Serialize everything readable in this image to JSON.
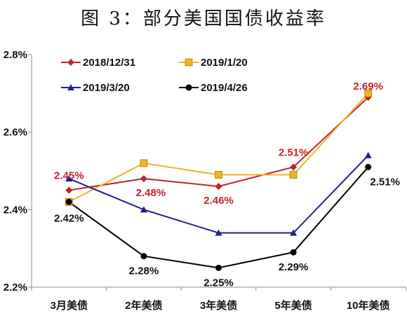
{
  "chart_data": {
    "type": "line",
    "title": "图 3：部分美国国债收益率",
    "categories": [
      "3月美债",
      "2年美债",
      "3年美债",
      "5年美债",
      "10年美债"
    ],
    "ylim": [
      2.2,
      2.8
    ],
    "yticks": [
      "2.2%",
      "2.4%",
      "2.6%",
      "2.8%"
    ],
    "grid": false,
    "legend_position": "top",
    "series": [
      {
        "name": "2018/12/31",
        "color": "#c0232d",
        "marker": "diamond",
        "values": [
          2.45,
          2.48,
          2.46,
          2.51,
          2.69
        ]
      },
      {
        "name": "2019/1/20",
        "color": "#f0b323",
        "marker": "square",
        "values": [
          2.42,
          2.52,
          2.49,
          2.49,
          2.7
        ]
      },
      {
        "name": "2019/3/20",
        "color": "#1f1f8f",
        "marker": "triangle",
        "values": [
          2.48,
          2.4,
          2.34,
          2.34,
          2.54
        ]
      },
      {
        "name": "2019/4/26",
        "color": "#000000",
        "marker": "circle",
        "values": [
          2.42,
          2.28,
          2.25,
          2.29,
          2.51
        ]
      }
    ],
    "data_labels": [
      {
        "series": 0,
        "index": 0,
        "text": "2.45%",
        "color": "#c0232d"
      },
      {
        "series": 0,
        "index": 1,
        "text": "2.48%",
        "color": "#c0232d"
      },
      {
        "series": 0,
        "index": 2,
        "text": "2.46%",
        "color": "#c0232d"
      },
      {
        "series": 0,
        "index": 3,
        "text": "2.51%",
        "color": "#c0232d"
      },
      {
        "series": 0,
        "index": 4,
        "text": "2.69%",
        "color": "#c0232d"
      },
      {
        "series": 3,
        "index": 0,
        "text": "2.42%",
        "color": "#111111"
      },
      {
        "series": 3,
        "index": 1,
        "text": "2.28%",
        "color": "#111111"
      },
      {
        "series": 3,
        "index": 2,
        "text": "2.25%",
        "color": "#111111"
      },
      {
        "series": 3,
        "index": 3,
        "text": "2.29%",
        "color": "#111111"
      },
      {
        "series": 3,
        "index": 4,
        "text": "2.51%",
        "color": "#111111"
      }
    ]
  }
}
